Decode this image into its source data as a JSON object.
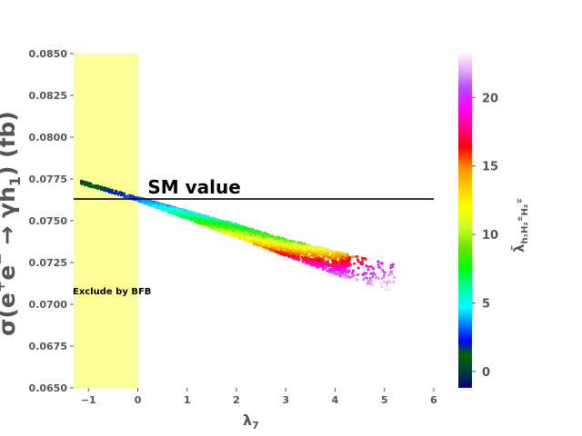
{
  "chart_data": {
    "type": "scatter",
    "title": "",
    "xlabel": "λ7",
    "ylabel": "σ(e⁺e⁻ → γh₁) (fb)",
    "xlim": [
      -1.3,
      6.0
    ],
    "ylim": [
      0.065,
      0.085
    ],
    "x_ticks": [
      -1,
      0,
      1,
      2,
      3,
      4,
      5,
      6
    ],
    "x_tick_labels": [
      "−1",
      "0",
      "1",
      "2",
      "3",
      "4",
      "5",
      "6"
    ],
    "y_ticks": [
      0.065,
      0.0675,
      0.07,
      0.0725,
      0.075,
      0.0775,
      0.08,
      0.0825,
      0.085
    ],
    "y_tick_labels": [
      "0.0650",
      "0.0675",
      "0.0700",
      "0.0725",
      "0.0750",
      "0.0775",
      "0.0800",
      "0.0825",
      "0.0850"
    ],
    "grid": false,
    "colorbar": {
      "label": "λ̄ h₁H₂±H₂∓",
      "range": [
        -1.2,
        23.2
      ],
      "ticks": [
        0,
        5,
        10,
        15,
        20
      ],
      "tick_labels": [
        "0",
        "5",
        "10",
        "15",
        "20"
      ],
      "colormap": "gist_ncar"
    },
    "sm_line": {
      "y": 0.0763,
      "x_range": [
        -1.3,
        6.0
      ],
      "label": "SM value",
      "color": "#000000"
    },
    "excluded_region": {
      "x_range": [
        -1.3,
        0.0
      ],
      "label": "Exclude by BFB",
      "color": "#ffff99"
    },
    "band": {
      "description_points": [
        {
          "x": -1.1,
          "y_center": 0.07725,
          "y_low": 0.07715,
          "y_high": 0.07735,
          "c_low": 0.0,
          "c_high": 0.5
        },
        {
          "x": 0.0,
          "y_center": 0.0763,
          "y_low": 0.0762,
          "y_high": 0.0764,
          "c_low": 2.5,
          "c_high": 3.0
        },
        {
          "x": 1.0,
          "y_center": 0.07535,
          "y_low": 0.0751,
          "y_high": 0.0756,
          "c_low": 4.0,
          "c_high": 7.0
        },
        {
          "x": 2.0,
          "y_center": 0.0744,
          "y_low": 0.074,
          "y_high": 0.0748,
          "c_low": 6.0,
          "c_high": 12.0
        },
        {
          "x": 3.0,
          "y_center": 0.07345,
          "y_low": 0.0729,
          "y_high": 0.0739,
          "c_low": 8.0,
          "c_high": 17.0
        },
        {
          "x": 4.0,
          "y_center": 0.0725,
          "y_low": 0.0718,
          "y_high": 0.0732,
          "c_low": 12.0,
          "c_high": 21.0
        },
        {
          "x": 5.0,
          "y_center": 0.0718,
          "y_low": 0.0708,
          "y_high": 0.0725,
          "c_low": 20.0,
          "c_high": 23.0
        }
      ],
      "point_count": 2600
    }
  }
}
